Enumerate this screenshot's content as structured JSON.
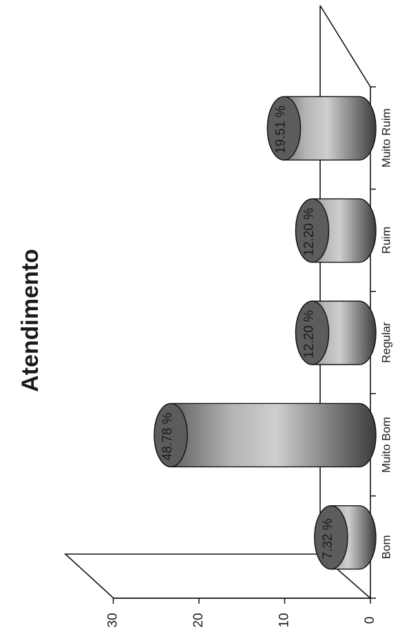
{
  "chart_data": {
    "type": "bar",
    "title": "Atendimento",
    "categories": [
      "Bom",
      "Muito Bom",
      "Regular",
      "Ruim",
      "Muito Ruim"
    ],
    "values": [
      3,
      20,
      5,
      5,
      8
    ],
    "data_labels": [
      "7.32 %",
      "48.78 %",
      "12.20 %",
      "12.20 %",
      "19.51 %"
    ],
    "yticks": [
      "0",
      "10",
      "20",
      "30"
    ],
    "ylim": [
      0,
      30
    ],
    "xlabel": "",
    "ylabel": "",
    "style": "3d-cylinder",
    "orientation": "rotated-90-ccw",
    "grid": false,
    "legend": "none"
  }
}
